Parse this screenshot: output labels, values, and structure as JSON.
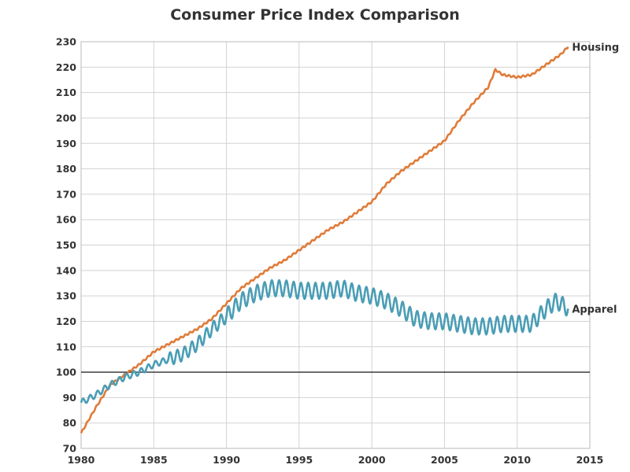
{
  "chart_data": {
    "type": "line",
    "title": "Consumer Price Index Comparison",
    "xlabel": "",
    "ylabel": "",
    "xlim": [
      1980,
      2015
    ],
    "ylim": [
      70,
      230
    ],
    "x_ticks": [
      1980,
      1985,
      1990,
      1995,
      2000,
      2005,
      2010,
      2015
    ],
    "y_ticks": [
      70,
      80,
      90,
      100,
      110,
      120,
      130,
      140,
      150,
      160,
      170,
      180,
      190,
      200,
      210,
      220,
      230
    ],
    "grid": true,
    "reference_line": 100,
    "series": [
      {
        "name": "Housing",
        "color": "#e07b39",
        "x": [
          1980,
          1981,
          1982,
          1983,
          1984,
          1985,
          1986,
          1987,
          1988,
          1989,
          1990,
          1991,
          1992,
          1993,
          1994,
          1995,
          1996,
          1997,
          1998,
          1999,
          2000,
          2001,
          2002,
          2003,
          2004,
          2005,
          2006,
          2007,
          2008,
          2008.5,
          2009,
          2010,
          2011,
          2012,
          2013,
          2013.5
        ],
        "values": [
          76,
          86,
          95,
          99,
          103,
          108,
          111,
          114,
          117,
          121,
          127,
          133,
          137,
          141,
          144,
          148,
          152,
          156,
          159,
          163,
          167,
          174,
          179,
          183,
          187,
          191,
          199,
          206,
          212,
          219,
          217,
          216,
          217,
          221,
          225,
          228
        ]
      },
      {
        "name": "Apparel",
        "color": "#4a9db5",
        "x": [
          1980,
          1981,
          1982,
          1983,
          1984,
          1985,
          1986,
          1987,
          1988,
          1989,
          1990,
          1991,
          1992,
          1993,
          1994,
          1995,
          1996,
          1997,
          1998,
          1999,
          2000,
          2001,
          2002,
          2003,
          2004,
          2005,
          2006,
          2007,
          2008,
          2009,
          2010,
          2011,
          2012,
          2012.7,
          2013.5
        ],
        "values": [
          88,
          91,
          95,
          98,
          100,
          103,
          105,
          107,
          111,
          117,
          122,
          128,
          131,
          133,
          133,
          132,
          132,
          132,
          133,
          131,
          130,
          128,
          125,
          121,
          120,
          120,
          119,
          118,
          118,
          119,
          119,
          119,
          125,
          128,
          125
        ]
      }
    ]
  }
}
